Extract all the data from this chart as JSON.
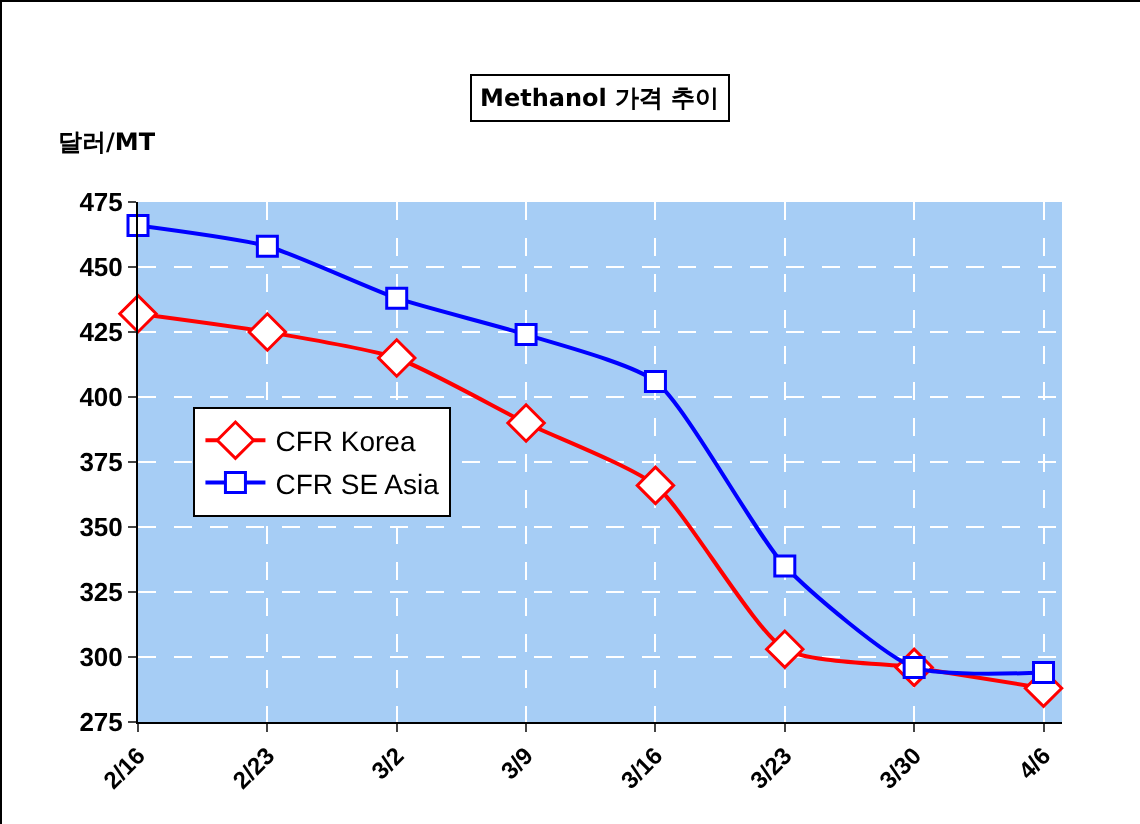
{
  "chart_data": {
    "type": "line",
    "title": "Methanol 가격 추이",
    "ylabel": "달러/MT",
    "x": [
      "--02-16",
      "--02-23",
      "--03-02",
      "--03-09",
      "--03-16",
      "--03-23",
      "--03-30",
      "--04-06"
    ],
    "series": [
      {
        "name": "CFR Korea",
        "color": "#ff0000",
        "marker": "diamond",
        "values": [
          432,
          425,
          415,
          390,
          366,
          303,
          296,
          288
        ]
      },
      {
        "name": "CFR SE Asia",
        "color": "#0000ff",
        "marker": "square",
        "values": [
          466,
          458,
          438,
          424,
          406,
          335,
          296,
          294
        ]
      }
    ],
    "xlim": [
      "--02-16",
      "--04-07"
    ],
    "xticks": [
      {
        "value": "--02-16",
        "label": "2/16"
      },
      {
        "value": "--02-23",
        "label": "2/23"
      },
      {
        "value": "--03-02",
        "label": "3/2"
      },
      {
        "value": "--03-09",
        "label": "3/9"
      },
      {
        "value": "--03-16",
        "label": "3/16"
      },
      {
        "value": "--03-23",
        "label": "3/23"
      },
      {
        "value": "--03-30",
        "label": "3/30"
      },
      {
        "value": "--04-06",
        "label": "4/6"
      }
    ],
    "ylim": [
      275,
      475
    ],
    "yticks": [
      275,
      300,
      325,
      350,
      375,
      400,
      425,
      450,
      475
    ],
    "grid": true,
    "legend": "left",
    "line_style": "solid"
  }
}
